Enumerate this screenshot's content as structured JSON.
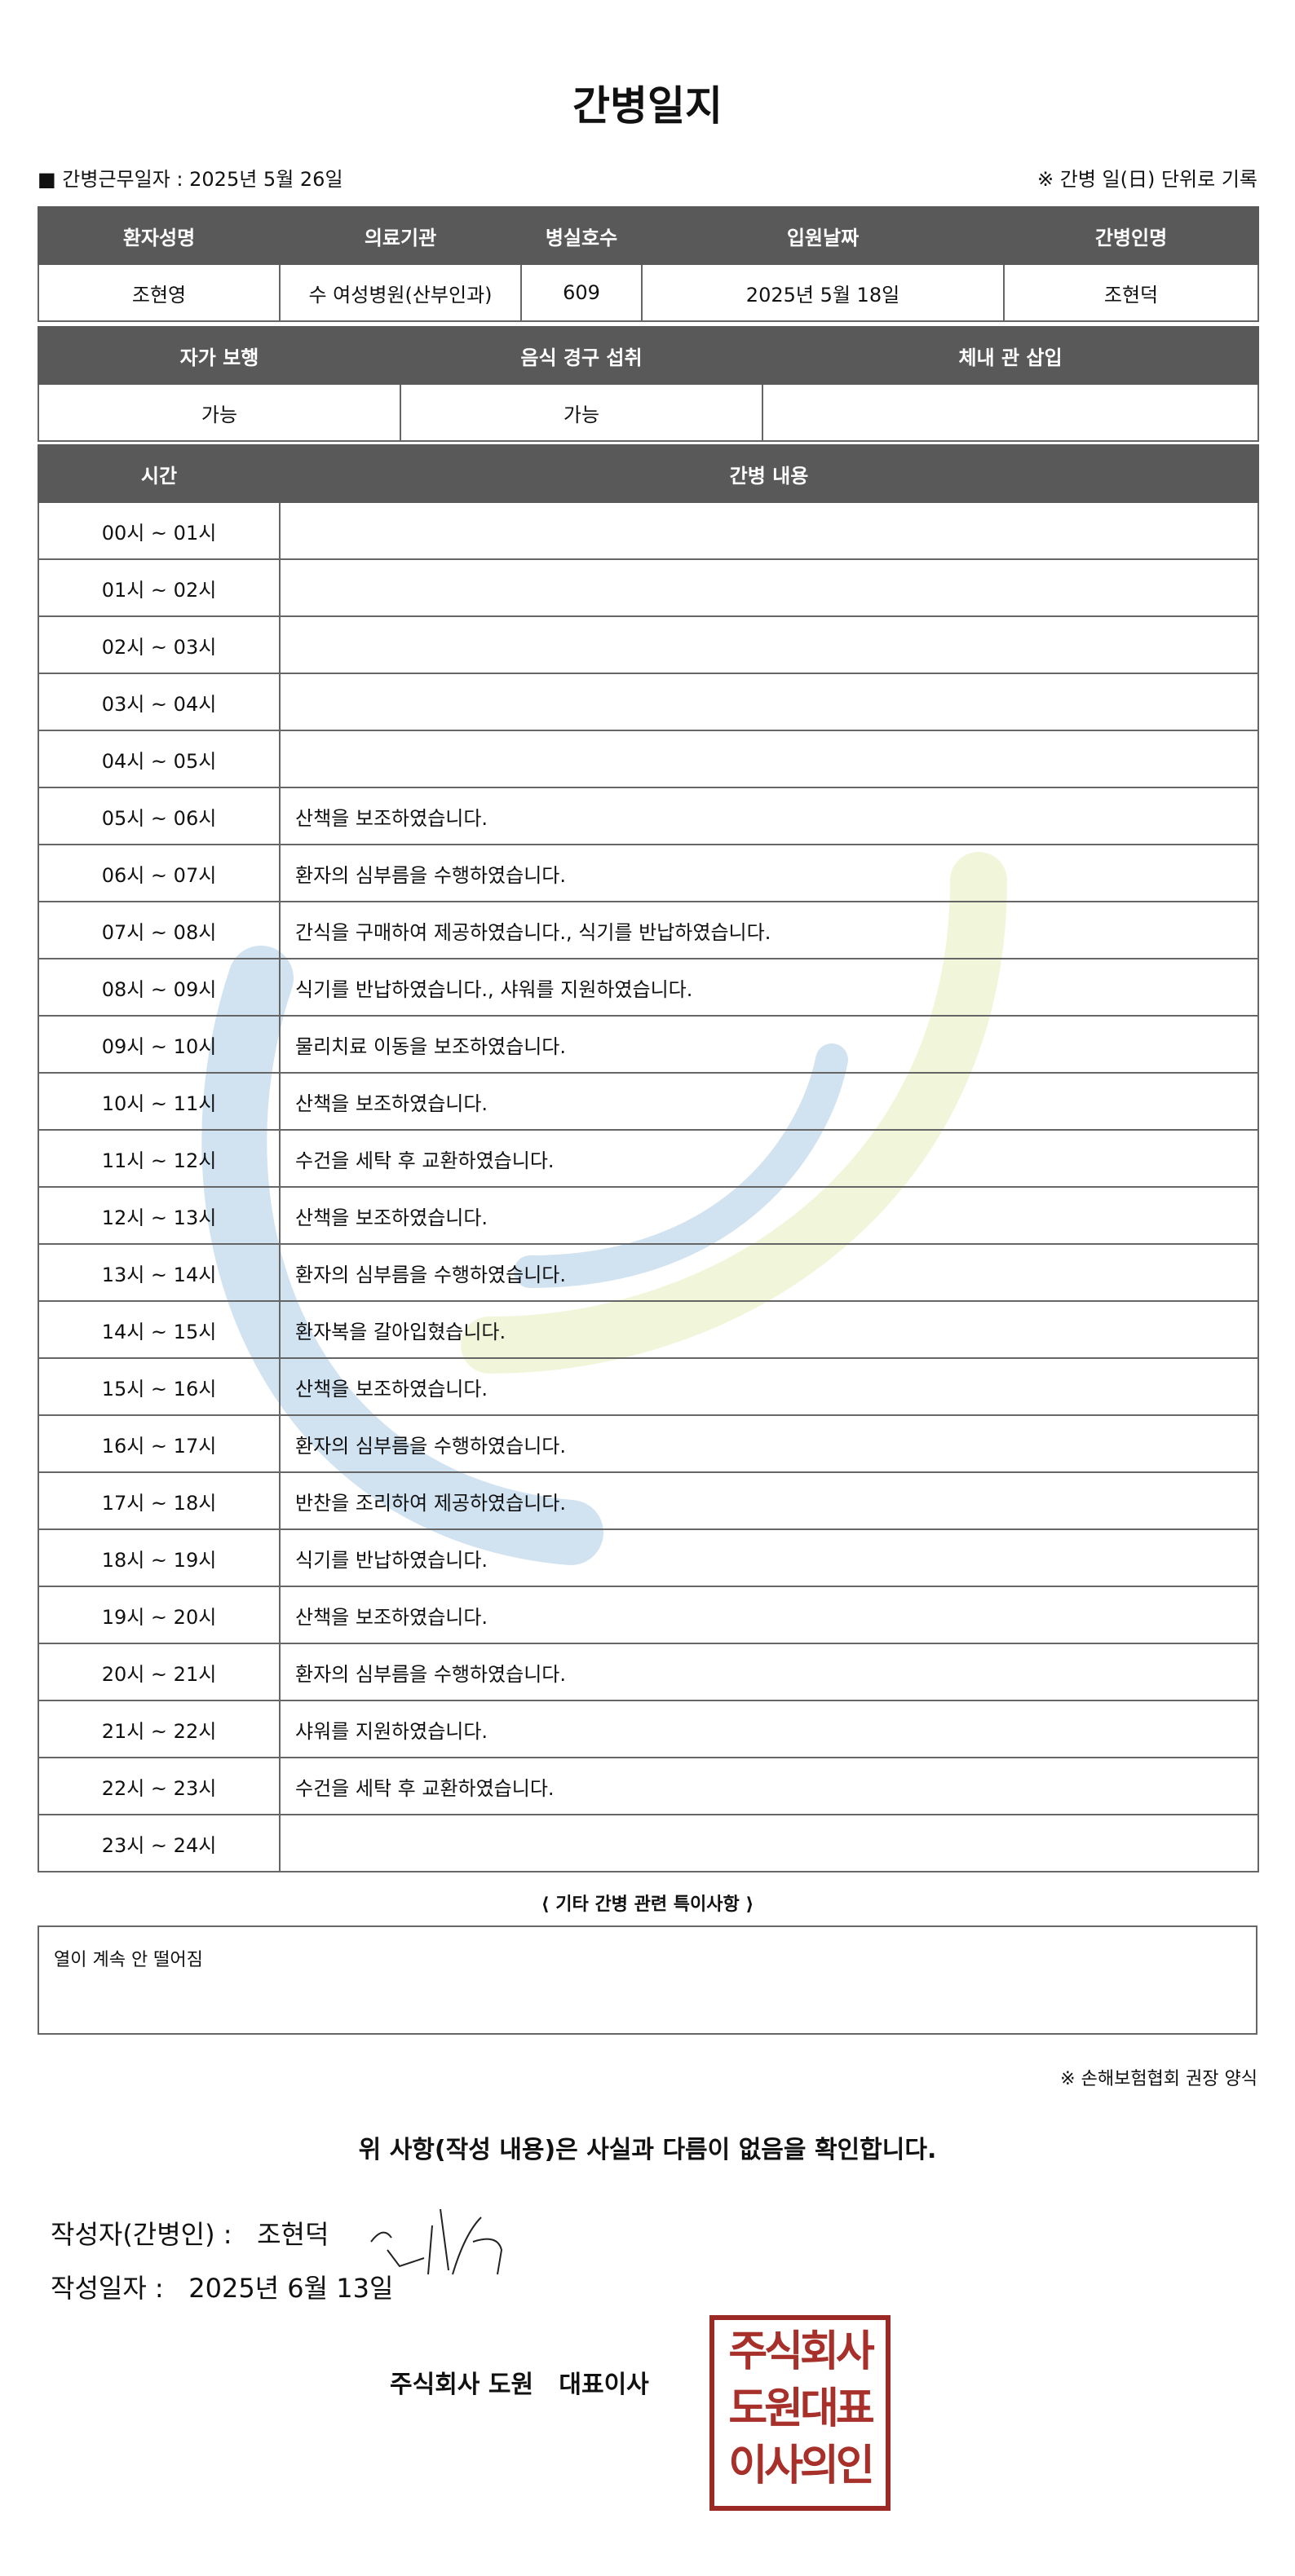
{
  "title": "간병일지",
  "work_date_label": "■ 간병근무일자  :",
  "work_date": "2025년 5월 26일",
  "daily_note": "※ 간병 일(日) 단위로 기록",
  "info": {
    "headers": [
      "환자성명",
      "의료기관",
      "병실호수",
      "입원날짜",
      "간병인명"
    ],
    "values": [
      "조현영",
      "수 여성병원(산부인과)",
      "609",
      "2025년 5월 18일",
      "조현덕"
    ]
  },
  "status": {
    "headers": [
      "자가 보행",
      "음식 경구 섭취",
      "체내 관 삽입"
    ],
    "values": [
      "가능",
      "가능",
      ""
    ]
  },
  "log": {
    "headers": [
      "시간",
      "간병 내용"
    ],
    "rows": [
      [
        "00시 ~ 01시",
        ""
      ],
      [
        "01시 ~ 02시",
        ""
      ],
      [
        "02시 ~ 03시",
        ""
      ],
      [
        "03시 ~ 04시",
        ""
      ],
      [
        "04시 ~ 05시",
        ""
      ],
      [
        "05시 ~ 06시",
        "산책을 보조하였습니다."
      ],
      [
        "06시 ~ 07시",
        "환자의 심부름을 수행하였습니다."
      ],
      [
        "07시 ~ 08시",
        "간식을 구매하여 제공하였습니다., 식기를 반납하였습니다."
      ],
      [
        "08시 ~ 09시",
        "식기를 반납하였습니다., 샤워를 지원하였습니다."
      ],
      [
        "09시 ~ 10시",
        "물리치료 이동을 보조하였습니다."
      ],
      [
        "10시 ~ 11시",
        "산책을 보조하였습니다."
      ],
      [
        "11시 ~ 12시",
        "수건을 세탁 후 교환하였습니다."
      ],
      [
        "12시 ~ 13시",
        "산책을 보조하였습니다."
      ],
      [
        "13시 ~ 14시",
        "환자의 심부름을 수행하였습니다."
      ],
      [
        "14시 ~ 15시",
        "환자복을 갈아입혔습니다."
      ],
      [
        "15시 ~ 16시",
        "산책을 보조하였습니다."
      ],
      [
        "16시 ~ 17시",
        "환자의 심부름을 수행하였습니다."
      ],
      [
        "17시 ~ 18시",
        "반찬을 조리하여 제공하였습니다."
      ],
      [
        "18시 ~ 19시",
        "식기를 반납하였습니다."
      ],
      [
        "19시 ~ 20시",
        "산책을 보조하였습니다."
      ],
      [
        "20시 ~ 21시",
        "환자의 심부름을 수행하였습니다."
      ],
      [
        "21시 ~ 22시",
        "샤워를 지원하였습니다."
      ],
      [
        "22시 ~ 23시",
        "수건을 세탁 후 교환하였습니다."
      ],
      [
        "23시 ~ 24시",
        ""
      ]
    ]
  },
  "special": {
    "title": "⟨ 기타 간병 관련 특이사항 ⟩",
    "content": "열이 계속 안 떨어짐"
  },
  "recommend": "※ 손해보험협회 권장 양식",
  "confirm": "위 사항(작성 내용)은 사실과 다름이 없음을 확인합니다.",
  "author_label": "작성자(간병인) :",
  "author": "조현덕",
  "date_label": "작성일자 :",
  "date": "2025년 6월 13일",
  "company": "주식회사 도원   대표이사",
  "seal_text": "주식회사 도원대표 이사의인",
  "colors": {
    "header": "#595959",
    "seal": "#a7302b"
  }
}
